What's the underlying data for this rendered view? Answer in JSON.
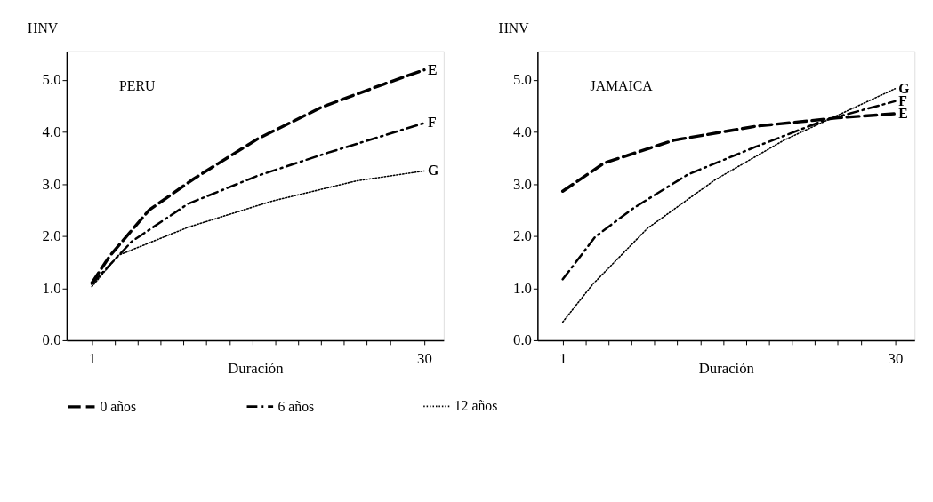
{
  "chart_data": [
    {
      "type": "line",
      "title": "PERU",
      "xlabel": "Duración",
      "ylabel": "HNV",
      "xlim": [
        -1.2,
        31.7
      ],
      "ylim": [
        0,
        5.55
      ],
      "xticks": [
        {
          "value": 1,
          "label": "1"
        },
        {
          "value": 3,
          "label": null
        },
        {
          "value": 5,
          "label": null
        },
        {
          "value": 7,
          "label": null
        },
        {
          "value": 9,
          "label": null
        },
        {
          "value": 11,
          "label": null
        },
        {
          "value": 13,
          "label": null
        },
        {
          "value": 15,
          "label": null
        },
        {
          "value": 17,
          "label": null
        },
        {
          "value": 19,
          "label": null
        },
        {
          "value": 21,
          "label": null
        },
        {
          "value": 23,
          "label": null
        },
        {
          "value": 25,
          "label": null
        },
        {
          "value": 27,
          "label": null
        },
        {
          "value": 30,
          "label": "30"
        }
      ],
      "yticks": [
        {
          "value": 0,
          "label": "0.0"
        },
        {
          "value": 1,
          "label": "1.0"
        },
        {
          "value": 2,
          "label": "2.0"
        },
        {
          "value": 3,
          "label": "3.0"
        },
        {
          "value": 4,
          "label": "4.0"
        },
        {
          "value": 5,
          "label": "5.0"
        }
      ],
      "grid": false,
      "legend": "bottom",
      "series": [
        {
          "name": "0 años",
          "color": "#000000",
          "line_style": "dashed",
          "x": [
            1,
            2.6,
            6.0,
            9.9,
            15.5,
            21.1,
            26.5,
            30
          ],
          "values": [
            1.1,
            1.63,
            2.5,
            3.1,
            3.87,
            4.48,
            4.92,
            5.19
          ]
        },
        {
          "name": "6 años",
          "color": "#000000",
          "line_style": "dashdot",
          "x": [
            1,
            4.5,
            9.4,
            15.5,
            21.6,
            30
          ],
          "values": [
            1.08,
            1.9,
            2.62,
            3.16,
            3.6,
            4.17
          ]
        },
        {
          "name": "12 años",
          "color": "#000000",
          "line_style": "dotted",
          "x": [
            1,
            3.3,
            9.4,
            16.7,
            24.1,
            30
          ],
          "values": [
            1.03,
            1.63,
            2.17,
            2.67,
            3.06,
            3.25
          ]
        }
      ],
      "annotations": [
        "E",
        "F",
        "G"
      ]
    },
    {
      "type": "line",
      "title": "JAMAICA",
      "xlabel": "Duración",
      "ylabel": "HNV",
      "xlim": [
        -1.2,
        31.7
      ],
      "ylim": [
        0,
        5.55
      ],
      "xticks": [
        {
          "value": 1,
          "label": "1"
        },
        {
          "value": 3,
          "label": null
        },
        {
          "value": 5,
          "label": null
        },
        {
          "value": 7,
          "label": null
        },
        {
          "value": 9,
          "label": null
        },
        {
          "value": 11,
          "label": null
        },
        {
          "value": 13,
          "label": null
        },
        {
          "value": 15,
          "label": null
        },
        {
          "value": 17,
          "label": null
        },
        {
          "value": 19,
          "label": null
        },
        {
          "value": 21,
          "label": null
        },
        {
          "value": 23,
          "label": null
        },
        {
          "value": 25,
          "label": null
        },
        {
          "value": 27,
          "label": null
        },
        {
          "value": 30,
          "label": "30"
        }
      ],
      "yticks": [
        {
          "value": 0,
          "label": "0.0"
        },
        {
          "value": 1,
          "label": "1.0"
        },
        {
          "value": 2,
          "label": "2.0"
        },
        {
          "value": 3,
          "label": "3.0"
        },
        {
          "value": 4,
          "label": "4.0"
        },
        {
          "value": 5,
          "label": "5.0"
        }
      ],
      "grid": false,
      "legend": "bottom",
      "series": [
        {
          "name": "0 años",
          "color": "#000000",
          "line_style": "dashed",
          "x": [
            1,
            4.6,
            10.7,
            17.9,
            25,
            30
          ],
          "values": [
            2.86,
            3.4,
            3.84,
            4.11,
            4.27,
            4.35
          ]
        },
        {
          "name": "6 años",
          "color": "#000000",
          "line_style": "dashdot",
          "x": [
            1,
            3.85,
            7.2,
            11.9,
            17.9,
            23.8,
            30
          ],
          "values": [
            1.17,
            1.99,
            2.54,
            3.18,
            3.72,
            4.22,
            4.59
          ]
        },
        {
          "name": "12 años",
          "color": "#000000",
          "line_style": "dotted",
          "x": [
            1,
            3.6,
            8.4,
            14.3,
            20.3,
            25,
            30
          ],
          "values": [
            0.35,
            1.07,
            2.15,
            3.08,
            3.84,
            4.32,
            4.83
          ]
        }
      ],
      "annotations": [
        "E",
        "F",
        "G"
      ]
    }
  ]
}
